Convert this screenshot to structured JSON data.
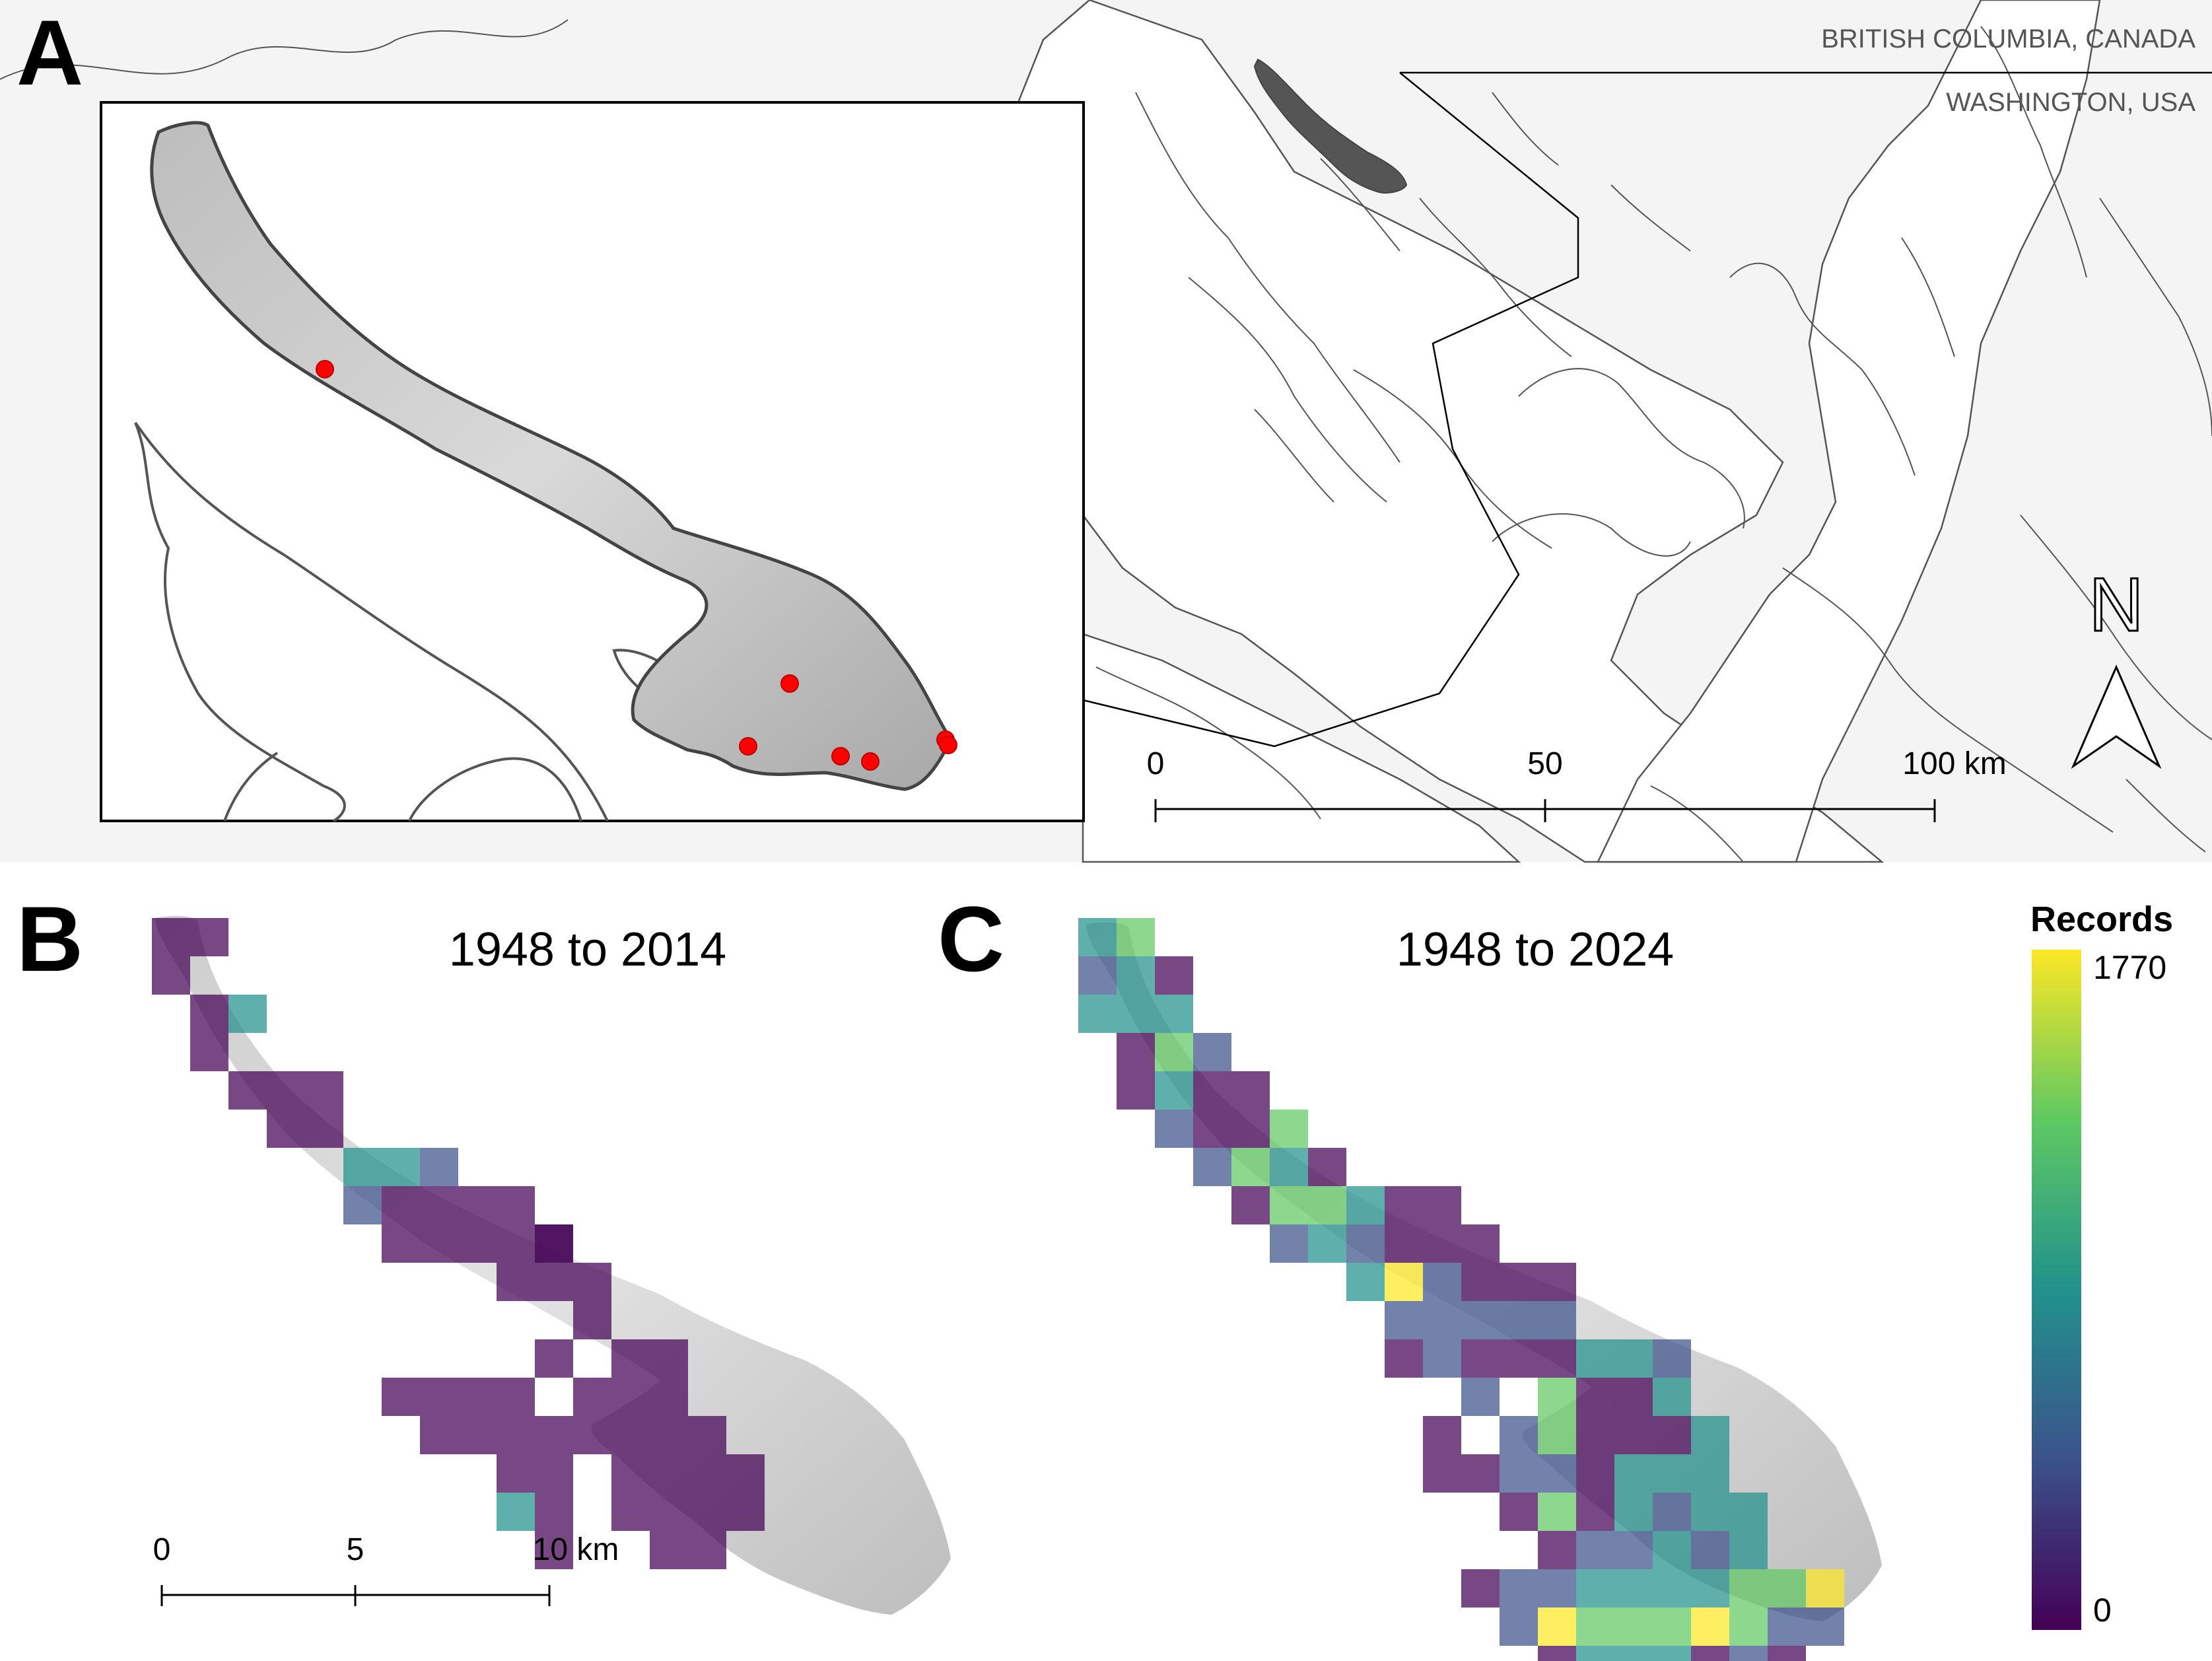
{
  "panels": {
    "a": {
      "letter": "A",
      "label_bc": "BRITISH COLUMBIA, CANADA",
      "label_wa": "WASHINGTON, USA",
      "north_label": "N",
      "scale": {
        "ticks": [
          "0",
          "50",
          "100 km"
        ]
      },
      "sample_points": 7
    },
    "b": {
      "letter": "B",
      "title": "1948 to 2014",
      "scale": {
        "ticks": [
          "0",
          "5",
          "10 km"
        ]
      }
    },
    "c": {
      "letter": "C",
      "title": "1948 to 2024"
    }
  },
  "legend": {
    "title": "Records",
    "max_label": "1770",
    "min_label": "0",
    "max_value": 1770,
    "min_value": 0,
    "colormap": "viridis",
    "colors": [
      "#440154",
      "#3b528b",
      "#21918c",
      "#5ec962",
      "#fde725"
    ]
  },
  "colors": {
    "land": "#f2f2f2",
    "coast_line": "#555555",
    "island_highlight": "#555555",
    "sample_point": "#ff0000"
  }
}
